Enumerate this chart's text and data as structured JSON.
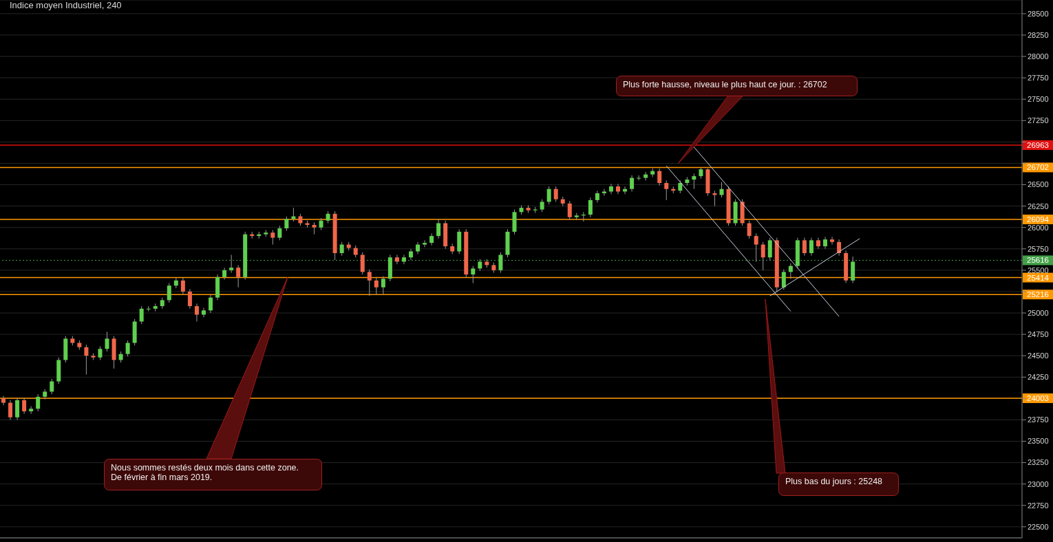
{
  "chart_data": {
    "type": "candlestick",
    "title": "Indice moyen Industriel, 240",
    "categories": [
      null,
      null,
      null,
      null,
      null,
      null,
      null,
      null,
      null,
      null,
      null,
      null,
      null,
      null,
      null,
      null,
      null,
      null,
      null,
      null,
      null,
      null,
      null,
      null,
      null,
      null,
      null,
      null,
      null,
      null,
      null,
      null,
      null,
      null,
      null,
      null,
      null,
      null,
      null,
      null,
      null,
      null,
      null,
      null,
      null,
      null,
      null,
      null,
      null,
      null,
      null,
      null,
      null,
      null,
      null,
      null,
      null,
      null,
      null,
      null,
      null,
      null,
      null,
      null,
      null,
      null,
      null,
      null,
      null,
      null,
      null,
      null,
      null,
      null,
      null,
      null,
      null,
      null,
      null,
      null,
      null,
      null,
      null,
      null,
      null,
      null,
      null,
      null,
      null,
      null,
      null,
      null,
      null,
      null,
      null,
      null,
      null,
      null,
      null,
      null,
      null,
      null,
      null,
      null,
      null,
      null,
      null,
      null,
      null,
      null,
      null,
      null,
      null,
      null,
      null,
      null,
      null,
      null,
      null,
      null,
      null,
      null,
      null,
      null,
      null,
      null,
      null,
      null,
      null,
      null,
      null,
      null,
      null,
      null,
      null,
      null,
      null,
      null,
      null,
      null,
      null,
      null,
      null,
      null,
      null,
      null,
      null,
      null
    ],
    "ohlc": [
      [
        24000,
        24030,
        23920,
        23950
      ],
      [
        23950,
        23980,
        23750,
        23780
      ],
      [
        23780,
        24010,
        23750,
        23980
      ],
      [
        23980,
        24010,
        23820,
        23850
      ],
      [
        23850,
        23910,
        23820,
        23880
      ],
      [
        23880,
        24050,
        23850,
        24020
      ],
      [
        24020,
        24110,
        23990,
        24080
      ],
      [
        24080,
        24230,
        24050,
        24200
      ],
      [
        24200,
        24480,
        24170,
        24450
      ],
      [
        24450,
        24730,
        24420,
        24700
      ],
      [
        24700,
        24730,
        24620,
        24650
      ],
      [
        24650,
        24680,
        24570,
        24600
      ],
      [
        24600,
        24630,
        24280,
        24500
      ],
      [
        24500,
        24530,
        24450,
        24480
      ],
      [
        24480,
        24610,
        24450,
        24580
      ],
      [
        24580,
        24780,
        24550,
        24700
      ],
      [
        24700,
        24730,
        24350,
        24450
      ],
      [
        24450,
        24550,
        24420,
        24520
      ],
      [
        24520,
        24680,
        24490,
        24650
      ],
      [
        24650,
        24930,
        24620,
        24900
      ],
      [
        24900,
        25080,
        24870,
        25050
      ],
      [
        25050,
        25080,
        25020,
        25050
      ],
      [
        25050,
        25110,
        25020,
        25080
      ],
      [
        25080,
        25180,
        25050,
        25150
      ],
      [
        25150,
        25350,
        25120,
        25320
      ],
      [
        25320,
        25410,
        25290,
        25380
      ],
      [
        25380,
        25410,
        25220,
        25250
      ],
      [
        25250,
        25280,
        25050,
        25080
      ],
      [
        25080,
        25110,
        24900,
        24980
      ],
      [
        24980,
        25060,
        24950,
        25030
      ],
      [
        25030,
        25210,
        25000,
        25180
      ],
      [
        25180,
        25450,
        25150,
        25420
      ],
      [
        25420,
        25530,
        25390,
        25500
      ],
      [
        25500,
        25680,
        25470,
        25530
      ],
      [
        25530,
        25560,
        25300,
        25420
      ],
      [
        25420,
        25950,
        25390,
        25920
      ],
      [
        25920,
        25950,
        25870,
        25900
      ],
      [
        25900,
        25950,
        25870,
        25920
      ],
      [
        25920,
        25970,
        25890,
        25940
      ],
      [
        25940,
        25970,
        25800,
        25880
      ],
      [
        25880,
        26020,
        25850,
        25990
      ],
      [
        25990,
        26130,
        25960,
        26100
      ],
      [
        26100,
        26230,
        26070,
        26130
      ],
      [
        26130,
        26160,
        26020,
        26050
      ],
      [
        26050,
        26080,
        26000,
        26030
      ],
      [
        26030,
        26060,
        25920,
        26000
      ],
      [
        26000,
        26110,
        25970,
        26080
      ],
      [
        26080,
        26190,
        26050,
        26160
      ],
      [
        26160,
        26190,
        25620,
        25700
      ],
      [
        25700,
        25830,
        25670,
        25800
      ],
      [
        25800,
        25830,
        25730,
        25760
      ],
      [
        25760,
        25790,
        25650,
        25680
      ],
      [
        25680,
        25710,
        25450,
        25480
      ],
      [
        25480,
        25510,
        25200,
        25380
      ],
      [
        25380,
        25410,
        25210,
        25300
      ],
      [
        25300,
        25430,
        25220,
        25400
      ],
      [
        25400,
        25680,
        25370,
        25650
      ],
      [
        25650,
        25680,
        25570,
        25600
      ],
      [
        25600,
        25680,
        25570,
        25650
      ],
      [
        25650,
        25750,
        25620,
        25720
      ],
      [
        25720,
        25830,
        25690,
        25800
      ],
      [
        25800,
        25850,
        25770,
        25820
      ],
      [
        25820,
        25930,
        25790,
        25900
      ],
      [
        25900,
        26100,
        25870,
        26050
      ],
      [
        26050,
        26080,
        25750,
        25780
      ],
      [
        25780,
        25810,
        25690,
        25720
      ],
      [
        25720,
        25980,
        25690,
        25950
      ],
      [
        25950,
        25980,
        25420,
        25450
      ],
      [
        25450,
        25550,
        25350,
        25520
      ],
      [
        25520,
        25630,
        25490,
        25600
      ],
      [
        25600,
        25630,
        25530,
        25560
      ],
      [
        25560,
        25590,
        25470,
        25500
      ],
      [
        25500,
        25710,
        25470,
        25680
      ],
      [
        25680,
        25980,
        25650,
        25950
      ],
      [
        25950,
        26210,
        25920,
        26180
      ],
      [
        26180,
        26260,
        26150,
        26230
      ],
      [
        26230,
        26260,
        26170,
        26200
      ],
      [
        26200,
        26240,
        26170,
        26210
      ],
      [
        26210,
        26330,
        26180,
        26300
      ],
      [
        26300,
        26480,
        26270,
        26450
      ],
      [
        26450,
        26480,
        26300,
        26330
      ],
      [
        26330,
        26360,
        26250,
        26280
      ],
      [
        26280,
        26310,
        26090,
        26120
      ],
      [
        26120,
        26170,
        26090,
        26140
      ],
      [
        26140,
        26180,
        26070,
        26150
      ],
      [
        26150,
        26350,
        26120,
        26320
      ],
      [
        26320,
        26430,
        26290,
        26400
      ],
      [
        26400,
        26450,
        26370,
        26420
      ],
      [
        26420,
        26510,
        26390,
        26480
      ],
      [
        26480,
        26510,
        26390,
        26420
      ],
      [
        26420,
        26480,
        26390,
        26450
      ],
      [
        26450,
        26610,
        26420,
        26580
      ],
      [
        26580,
        26610,
        26550,
        26580
      ],
      [
        26580,
        26650,
        26550,
        26620
      ],
      [
        26620,
        26690,
        26590,
        26660
      ],
      [
        26660,
        26690,
        26490,
        26520
      ],
      [
        26520,
        26550,
        26320,
        26450
      ],
      [
        26450,
        26480,
        26400,
        26430
      ],
      [
        26430,
        26550,
        26400,
        26520
      ],
      [
        26520,
        26590,
        26490,
        26560
      ],
      [
        26560,
        26630,
        26450,
        26600
      ],
      [
        26600,
        26702,
        26570,
        26680
      ],
      [
        26680,
        26690,
        26370,
        26400
      ],
      [
        26400,
        26430,
        26250,
        26380
      ],
      [
        26380,
        26530,
        26350,
        26450
      ],
      [
        26450,
        26480,
        26020,
        26050
      ],
      [
        26050,
        26330,
        26020,
        26300
      ],
      [
        26300,
        26330,
        26020,
        26050
      ],
      [
        26050,
        26080,
        25870,
        25900
      ],
      [
        25900,
        25930,
        25600,
        25800
      ],
      [
        25800,
        25830,
        25500,
        25650
      ],
      [
        25650,
        25880,
        25620,
        25850
      ],
      [
        25850,
        25880,
        25248,
        25300
      ],
      [
        25300,
        25510,
        25270,
        25480
      ],
      [
        25480,
        25580,
        25400,
        25550
      ],
      [
        25550,
        25880,
        25520,
        25850
      ],
      [
        25850,
        25880,
        25670,
        25700
      ],
      [
        25700,
        25880,
        25670,
        25850
      ],
      [
        25850,
        25880,
        25750,
        25780
      ],
      [
        25780,
        25890,
        25750,
        25860
      ],
      [
        25860,
        25890,
        25800,
        25830
      ],
      [
        25830,
        25860,
        25670,
        25700
      ],
      [
        25700,
        25730,
        25350,
        25380
      ],
      [
        25380,
        25660,
        25350,
        25600
      ],
      null,
      null,
      null,
      null,
      null,
      null,
      null,
      null,
      null,
      null,
      null,
      null,
      null,
      null,
      null,
      null,
      null,
      null,
      null,
      null,
      null,
      null,
      null,
      null
    ],
    "series": [
      {
        "type": "line",
        "color": "#c8d0e0",
        "values": [
          null,
          null,
          null,
          null,
          null,
          null,
          null,
          null,
          null,
          null,
          null,
          null,
          null,
          null,
          null,
          null,
          null,
          null,
          null,
          null,
          null,
          null,
          null,
          null,
          null,
          null,
          null,
          null,
          null,
          null,
          null,
          null,
          null,
          null,
          null,
          null,
          null,
          null,
          null,
          null,
          null,
          null,
          null,
          null,
          null,
          null,
          null,
          null,
          null,
          null,
          null,
          null,
          null,
          null,
          null,
          null,
          null,
          null,
          null,
          null,
          null,
          null,
          null,
          null,
          null,
          null,
          null,
          null,
          null,
          null,
          null,
          null,
          null,
          null,
          null,
          null,
          null,
          null,
          null,
          null,
          null,
          null,
          null,
          null,
          null,
          null,
          null,
          null,
          null,
          null,
          null,
          null,
          null,
          null,
          null,
          null,
          26720,
          null,
          null,
          null,
          null,
          null,
          null,
          null,
          null,
          null,
          null,
          null,
          null,
          null,
          null,
          null,
          null,
          null,
          25020,
          null,
          null,
          null,
          null,
          null,
          null,
          null,
          null,
          null,
          null,
          null,
          null,
          null,
          null,
          null,
          null,
          null,
          null,
          null,
          null,
          null,
          null,
          null,
          null,
          null,
          null,
          null,
          null,
          null,
          null,
          null,
          null,
          null
        ]
      },
      {
        "type": "line",
        "color": "#c8d0e0",
        "values": [
          null,
          null,
          null,
          null,
          null,
          null,
          null,
          null,
          null,
          null,
          null,
          null,
          null,
          null,
          null,
          null,
          null,
          null,
          null,
          null,
          null,
          null,
          null,
          null,
          null,
          null,
          null,
          null,
          null,
          null,
          null,
          null,
          null,
          null,
          null,
          null,
          null,
          null,
          null,
          null,
          null,
          null,
          null,
          null,
          null,
          null,
          null,
          null,
          null,
          null,
          null,
          null,
          null,
          null,
          null,
          null,
          null,
          null,
          null,
          null,
          null,
          null,
          null,
          null,
          null,
          null,
          null,
          null,
          null,
          null,
          null,
          null,
          null,
          null,
          null,
          null,
          null,
          null,
          null,
          null,
          null,
          null,
          null,
          null,
          null,
          null,
          null,
          null,
          null,
          null,
          null,
          null,
          null,
          null,
          null,
          null,
          null,
          null,
          null,
          null,
          26940,
          null,
          null,
          null,
          null,
          null,
          null,
          null,
          null,
          null,
          null,
          null,
          null,
          null,
          null,
          null,
          null,
          null,
          null,
          null,
          null,
          24960,
          null,
          null,
          null,
          null,
          null,
          null,
          null,
          null,
          null,
          null,
          null,
          null,
          null,
          null,
          null,
          null,
          null,
          null,
          null,
          null,
          null,
          null,
          null,
          null,
          null,
          null
        ]
      },
      {
        "type": "line",
        "color": "#c8d0e0",
        "values": [
          null,
          null,
          null,
          null,
          null,
          null,
          null,
          null,
          null,
          null,
          null,
          null,
          null,
          null,
          null,
          null,
          null,
          null,
          null,
          null,
          null,
          null,
          null,
          null,
          null,
          null,
          null,
          null,
          null,
          null,
          null,
          null,
          null,
          null,
          null,
          null,
          null,
          null,
          null,
          null,
          null,
          null,
          null,
          null,
          null,
          null,
          null,
          null,
          null,
          null,
          null,
          null,
          null,
          null,
          null,
          null,
          null,
          null,
          null,
          null,
          null,
          null,
          null,
          null,
          null,
          null,
          null,
          null,
          null,
          null,
          null,
          null,
          null,
          null,
          null,
          null,
          null,
          null,
          null,
          null,
          null,
          null,
          null,
          null,
          null,
          null,
          null,
          null,
          null,
          null,
          null,
          null,
          null,
          null,
          null,
          null,
          null,
          null,
          null,
          null,
          null,
          null,
          null,
          null,
          null,
          null,
          null,
          null,
          null,
          null,
          null,
          25200,
          null,
          null,
          null,
          null,
          null,
          null,
          null,
          null,
          null,
          null,
          null,
          null,
          25870,
          null,
          null,
          null,
          null,
          null,
          null,
          null,
          null,
          null,
          null,
          null,
          null,
          null,
          null,
          null,
          null,
          null,
          null,
          null,
          null,
          null,
          null,
          null
        ]
      }
    ],
    "ylim": [
      22370,
      28660
    ],
    "yticks": [
      22500,
      22750,
      23000,
      23250,
      23500,
      23750,
      {
        "value": 24000,
        "label": null
      },
      24250,
      24500,
      24750,
      25000,
      {
        "value": 25250,
        "label": null
      },
      25500,
      25750,
      26000,
      26250,
      26500,
      {
        "value": 26750,
        "label": null
      },
      {
        "value": 27000,
        "label": null
      },
      27250,
      27500,
      27750,
      28000,
      28250,
      28500
    ],
    "grid": "y",
    "tick_labels": "y",
    "marker": "none",
    "ref_lines": [
      {
        "axis": "y",
        "value": 26963,
        "label": "26963",
        "color": "#e01010"
      },
      {
        "axis": "y",
        "value": 26702,
        "label": "26702",
        "color": "#ff9800"
      },
      {
        "axis": "y",
        "value": 26094,
        "label": "26094",
        "color": "#ff9800"
      },
      {
        "axis": "y",
        "value": 25616,
        "label": "25616",
        "color": "#43a047",
        "line_style": "dotted"
      },
      {
        "axis": "y",
        "value": 25414,
        "label": "25414",
        "color": "#ff9800"
      },
      {
        "axis": "y",
        "value": 25216,
        "label": "25216",
        "color": "#ff9800"
      },
      {
        "axis": "y",
        "value": 24003,
        "label": "24003",
        "color": "#ff9800"
      }
    ],
    "annotations": [
      "Plus forte hausse, niveau le plus haut  ce jour. : 26702",
      "Nous sommes restés deux mois dans cette zone.\nDe février à fin mars 2019.",
      "Plus bas du jours : 25248"
    ]
  }
}
